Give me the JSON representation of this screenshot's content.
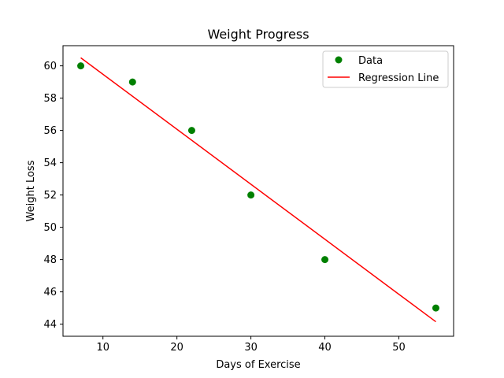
{
  "chart_data": {
    "type": "scatter",
    "title": "Weight Progress",
    "xlabel": "Days of Exercise",
    "ylabel": "Weight Loss",
    "xlim": [
      4.6,
      57.4
    ],
    "ylim": [
      43.25,
      61.25
    ],
    "x_ticks": [
      10,
      20,
      30,
      40,
      50
    ],
    "y_ticks": [
      44,
      46,
      48,
      50,
      52,
      54,
      56,
      58,
      60
    ],
    "grid": false,
    "legend_position": "top-right",
    "series": [
      {
        "name": "Data",
        "kind": "scatter",
        "color": "#008000",
        "x": [
          7,
          14,
          22,
          30,
          40,
          55
        ],
        "y": [
          60,
          59,
          56,
          52,
          48,
          45
        ]
      },
      {
        "name": "Regression Line",
        "kind": "line",
        "color": "#ff0000",
        "x": [
          7,
          55
        ],
        "y": [
          60.5,
          44.15
        ]
      }
    ]
  }
}
